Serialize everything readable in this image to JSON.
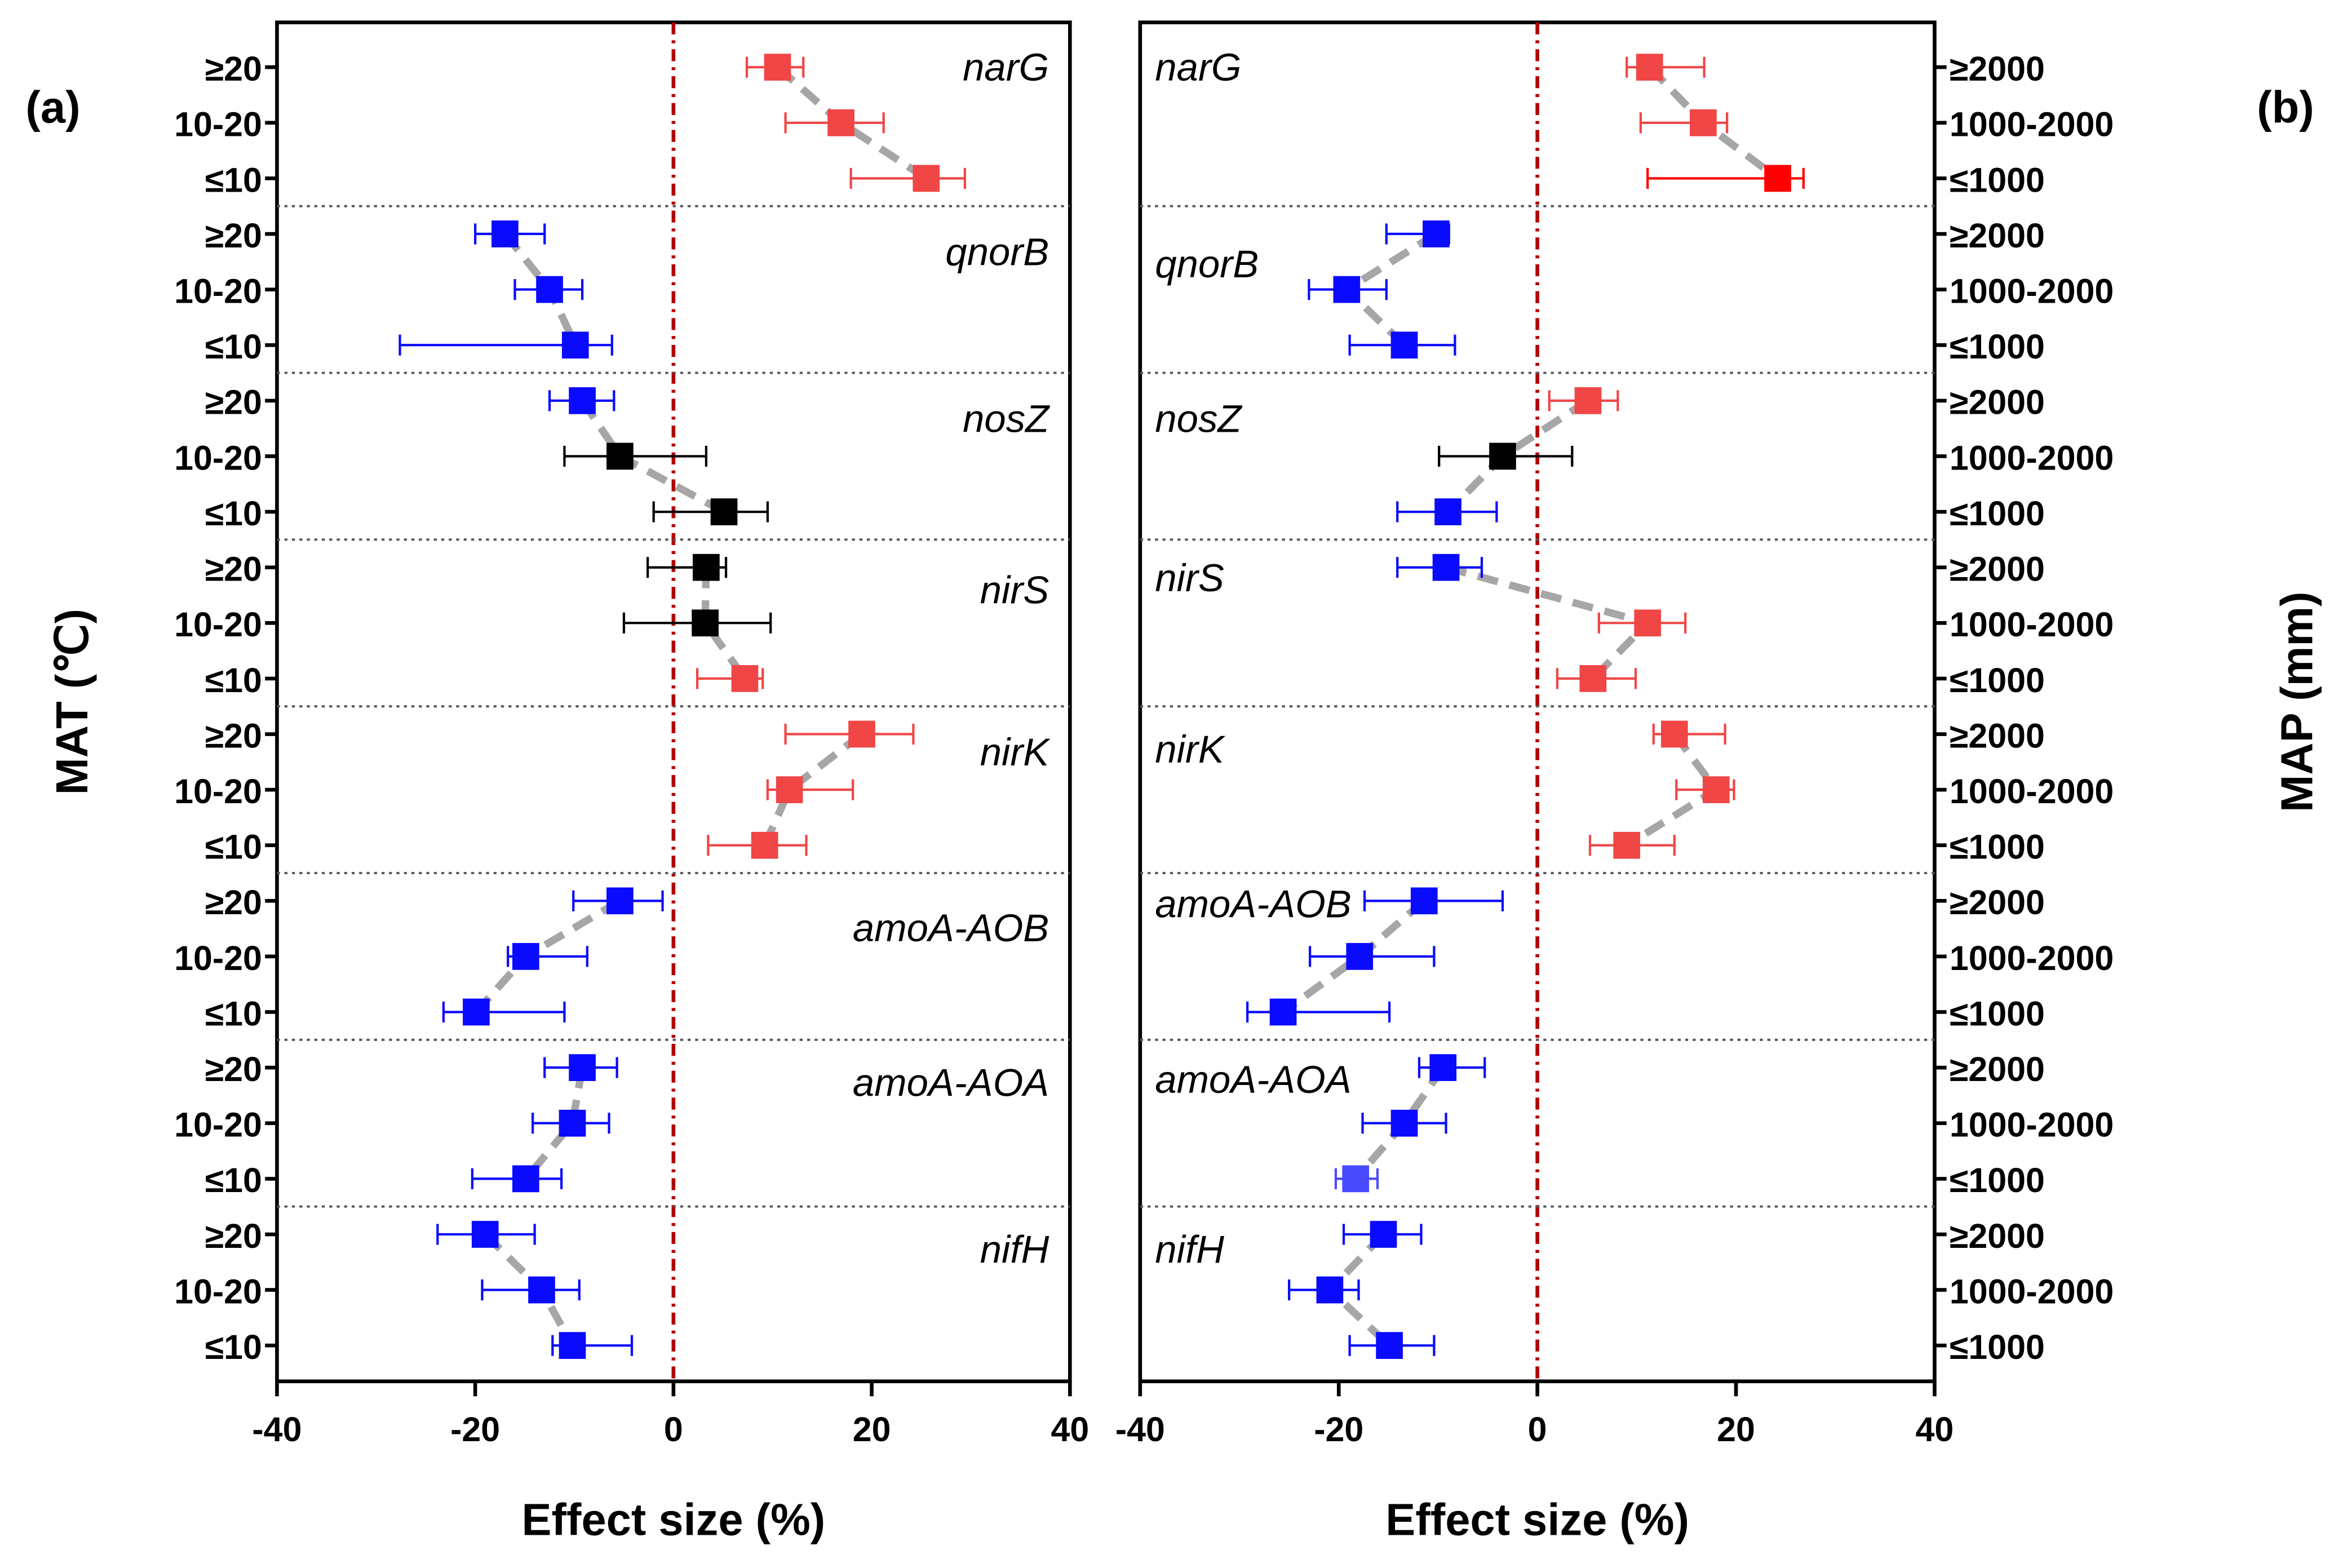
{
  "colors": {
    "red": "#f04646",
    "red_strong": "#ff0000",
    "blue": "#0a0aff",
    "blue_light": "#4a4aff",
    "black": "#000000",
    "connector": "#a6a6a6",
    "zero_line": "#b00000"
  },
  "chart_data": [
    {
      "type": "forest",
      "panel_label": "(a)",
      "xlabel": "Effect size (%)",
      "ylabel": "MAT (℃)",
      "xlim": [
        -40,
        40
      ],
      "xticks": [
        "-40",
        "-20",
        "0",
        "20",
        "40"
      ],
      "xtick_values": [
        -40,
        -20,
        0,
        20,
        40
      ],
      "ytick_side": "left",
      "groups": [
        {
          "gene": "narG",
          "rows": [
            {
              "label": "≥20",
              "value": 10.5,
              "ci": [
                7.4,
                13.1
              ],
              "color": "red"
            },
            {
              "label": "10-20",
              "value": 16.9,
              "ci": [
                11.3,
                21.2
              ],
              "color": "red"
            },
            {
              "label": "≤10",
              "value": 25.5,
              "ci": [
                17.9,
                29.4
              ],
              "color": "red"
            }
          ]
        },
        {
          "gene": "qnorB",
          "rows": [
            {
              "label": "≥20",
              "value": -17.0,
              "ci": [
                -20.0,
                -13.0
              ],
              "color": "blue"
            },
            {
              "label": "10-20",
              "value": -12.5,
              "ci": [
                -16.0,
                -9.2
              ],
              "color": "blue"
            },
            {
              "label": "≤10",
              "value": -9.9,
              "ci": [
                -27.6,
                -6.2
              ],
              "color": "blue"
            }
          ]
        },
        {
          "gene": "nosZ",
          "rows": [
            {
              "label": "≥20",
              "value": -9.2,
              "ci": [
                -12.5,
                -6.0
              ],
              "color": "blue"
            },
            {
              "label": "10-20",
              "value": -5.4,
              "ci": [
                -11.0,
                3.3
              ],
              "color": "black"
            },
            {
              "label": "≤10",
              "value": 5.1,
              "ci": [
                -2.0,
                9.5
              ],
              "color": "black"
            }
          ]
        },
        {
          "gene": "nirS",
          "rows": [
            {
              "label": "≥20",
              "value": 3.3,
              "ci": [
                -2.6,
                5.3
              ],
              "color": "black"
            },
            {
              "label": "10-20",
              "value": 3.2,
              "ci": [
                -5.0,
                9.8
              ],
              "color": "black"
            },
            {
              "label": "≤10",
              "value": 7.2,
              "ci": [
                2.4,
                9.0
              ],
              "color": "red"
            }
          ]
        },
        {
          "gene": "nirK",
          "rows": [
            {
              "label": "≥20",
              "value": 19.0,
              "ci": [
                11.3,
                24.2
              ],
              "color": "red"
            },
            {
              "label": "10-20",
              "value": 11.7,
              "ci": [
                9.5,
                18.1
              ],
              "color": "red"
            },
            {
              "label": "≤10",
              "value": 9.2,
              "ci": [
                3.5,
                13.4
              ],
              "color": "red"
            }
          ]
        },
        {
          "gene": "amoA-AOB",
          "rows": [
            {
              "label": "≥20",
              "value": -5.4,
              "ci": [
                -10.1,
                -1.1
              ],
              "color": "blue"
            },
            {
              "label": "10-20",
              "value": -14.9,
              "ci": [
                -16.7,
                -8.7
              ],
              "color": "blue"
            },
            {
              "label": "≤10",
              "value": -19.9,
              "ci": [
                -23.2,
                -11.0
              ],
              "color": "blue"
            }
          ]
        },
        {
          "gene": "amoA-AOA",
          "rows": [
            {
              "label": "≥20",
              "value": -9.2,
              "ci": [
                -13.0,
                -5.7
              ],
              "color": "blue"
            },
            {
              "label": "10-20",
              "value": -10.2,
              "ci": [
                -14.2,
                -6.5
              ],
              "color": "blue"
            },
            {
              "label": "≤10",
              "value": -14.9,
              "ci": [
                -20.3,
                -11.3
              ],
              "color": "blue"
            }
          ]
        },
        {
          "gene": "nifH",
          "rows": [
            {
              "label": "≥20",
              "value": -19.0,
              "ci": [
                -23.8,
                -14.0
              ],
              "color": "blue"
            },
            {
              "label": "10-20",
              "value": -13.3,
              "ci": [
                -19.3,
                -9.5
              ],
              "color": "blue"
            },
            {
              "label": "≤10",
              "value": -10.2,
              "ci": [
                -12.2,
                -4.2
              ],
              "color": "blue"
            }
          ]
        }
      ]
    },
    {
      "type": "forest",
      "panel_label": "(b)",
      "xlabel": "Effect size (%)",
      "ylabel": "MAP (mm)",
      "xlim": [
        -40,
        40
      ],
      "xticks": [
        "-40",
        "-20",
        "0",
        "20",
        "40"
      ],
      "xtick_values": [
        -40,
        -20,
        0,
        20,
        40
      ],
      "ytick_side": "right",
      "groups": [
        {
          "gene": "narG",
          "rows": [
            {
              "label": "≥2000",
              "value": 11.3,
              "ci": [
                9.0,
                16.8
              ],
              "color": "red"
            },
            {
              "label": "1000-2000",
              "value": 16.7,
              "ci": [
                10.4,
                19.1
              ],
              "color": "red"
            },
            {
              "label": "≤1000",
              "value": 24.2,
              "ci": [
                11.1,
                26.8
              ],
              "color": "red_strong"
            }
          ]
        },
        {
          "gene": "qnorB",
          "rows": [
            {
              "label": "≥2000",
              "value": -10.2,
              "ci": [
                -15.2,
                -8.9
              ],
              "color": "blue"
            },
            {
              "label": "1000-2000",
              "value": -19.2,
              "ci": [
                -23.0,
                -15.2
              ],
              "color": "blue"
            },
            {
              "label": "≤1000",
              "value": -13.4,
              "ci": [
                -18.9,
                -8.3
              ],
              "color": "blue"
            }
          ]
        },
        {
          "gene": "nosZ",
          "rows": [
            {
              "label": "≥2000",
              "value": 5.1,
              "ci": [
                1.2,
                8.1
              ],
              "color": "red"
            },
            {
              "label": "1000-2000",
              "value": -3.5,
              "ci": [
                -9.9,
                3.5
              ],
              "color": "black"
            },
            {
              "label": "≤1000",
              "value": -9.0,
              "ci": [
                -14.1,
                -4.1
              ],
              "color": "blue"
            }
          ]
        },
        {
          "gene": "nirS",
          "rows": [
            {
              "label": "≥2000",
              "value": -9.2,
              "ci": [
                -14.1,
                -5.6
              ],
              "color": "blue"
            },
            {
              "label": "1000-2000",
              "value": 11.1,
              "ci": [
                6.2,
                14.9
              ],
              "color": "red"
            },
            {
              "label": "≤1000",
              "value": 5.6,
              "ci": [
                2.0,
                9.9
              ],
              "color": "red"
            }
          ]
        },
        {
          "gene": "nirK",
          "rows": [
            {
              "label": "≥2000",
              "value": 13.8,
              "ci": [
                11.7,
                18.9
              ],
              "color": "red"
            },
            {
              "label": "1000-2000",
              "value": 18.0,
              "ci": [
                14.0,
                19.8
              ],
              "color": "red"
            },
            {
              "label": "≤1000",
              "value": 9.0,
              "ci": [
                5.3,
                13.8
              ],
              "color": "red"
            }
          ]
        },
        {
          "gene": "amoA-AOB",
          "rows": [
            {
              "label": "≥2000",
              "value": -11.4,
              "ci": [
                -17.4,
                -3.5
              ],
              "color": "blue"
            },
            {
              "label": "1000-2000",
              "value": -17.9,
              "ci": [
                -22.9,
                -10.4
              ],
              "color": "blue"
            },
            {
              "label": "≤1000",
              "value": -25.6,
              "ci": [
                -29.2,
                -14.9
              ],
              "color": "blue"
            }
          ]
        },
        {
          "gene": "amoA-AOA",
          "rows": [
            {
              "label": "≥2000",
              "value": -9.5,
              "ci": [
                -11.9,
                -5.3
              ],
              "color": "blue"
            },
            {
              "label": "1000-2000",
              "value": -13.4,
              "ci": [
                -17.6,
                -9.2
              ],
              "color": "blue"
            },
            {
              "label": "≤1000",
              "value": -18.3,
              "ci": [
                -20.3,
                -16.1
              ],
              "color": "blue_light"
            }
          ]
        },
        {
          "gene": "nifH",
          "rows": [
            {
              "label": "≥2000",
              "value": -15.5,
              "ci": [
                -19.5,
                -11.7
              ],
              "color": "blue"
            },
            {
              "label": "1000-2000",
              "value": -20.9,
              "ci": [
                -25.0,
                -18.0
              ],
              "color": "blue"
            },
            {
              "label": "≤1000",
              "value": -14.9,
              "ci": [
                -18.9,
                -10.4
              ],
              "color": "blue"
            }
          ]
        }
      ]
    }
  ]
}
